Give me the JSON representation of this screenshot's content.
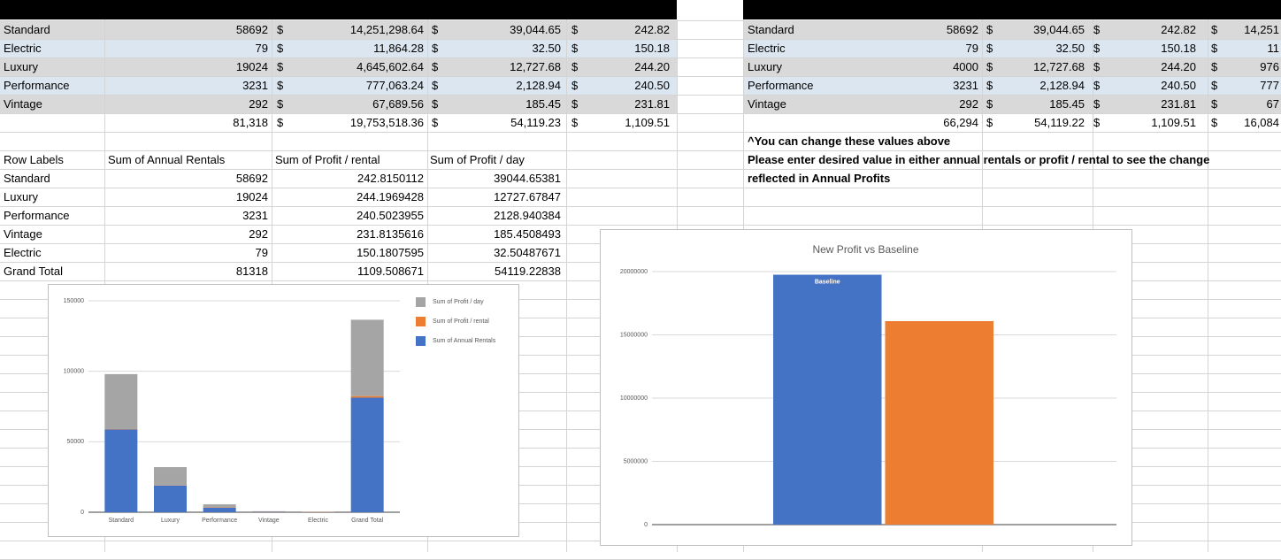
{
  "left_table": {
    "rows": [
      [
        "Standard",
        "58692",
        "$",
        "14,251,298.64",
        "$",
        "39,044.65",
        "$",
        "242.82"
      ],
      [
        "Electric",
        "79",
        "$",
        "11,864.28",
        "$",
        "32.50",
        "$",
        "150.18"
      ],
      [
        "Luxury",
        "19024",
        "$",
        "4,645,602.64",
        "$",
        "12,727.68",
        "$",
        "244.20"
      ],
      [
        "Performance",
        "3231",
        "$",
        "777,063.24",
        "$",
        "2,128.94",
        "$",
        "240.50"
      ],
      [
        "Vintage",
        "292",
        "$",
        "67,689.56",
        "$",
        "185.45",
        "$",
        "231.81"
      ]
    ],
    "totals": [
      "81,318",
      "$",
      "19,753,518.36",
      "$",
      "54,119.23",
      "$",
      "1,109.51"
    ]
  },
  "right_table": {
    "rows": [
      [
        "Standard",
        "58692",
        "$",
        "39,044.65",
        "$",
        "242.82",
        "$",
        "14,251"
      ],
      [
        "Electric",
        "79",
        "$",
        "32.50",
        "$",
        "150.18",
        "$",
        "11"
      ],
      [
        "Luxury",
        "4000",
        "$",
        "12,727.68",
        "$",
        "244.20",
        "$",
        "976"
      ],
      [
        "Performance",
        "3231",
        "$",
        "2,128.94",
        "$",
        "240.50",
        "$",
        "777"
      ],
      [
        "Vintage",
        "292",
        "$",
        "185.45",
        "$",
        "231.81",
        "$",
        "67"
      ]
    ],
    "totals": [
      "66,294",
      "$",
      "54,119.22",
      "$",
      "1,109.51",
      "$",
      "16,084"
    ]
  },
  "notes": [
    "^You can change these values above",
    "Please enter desired value in either annual rentals or profit / rental to see the change",
    "reflected in Annual Profits"
  ],
  "pivot": {
    "headers": [
      "Row Labels",
      "Sum of Annual Rentals",
      "Sum of Profit / rental",
      "Sum of Profit / day"
    ],
    "rows": [
      [
        "Standard",
        "58692",
        "242.8150112",
        "39044.65381"
      ],
      [
        "Luxury",
        "19024",
        "244.1969428",
        "12727.67847"
      ],
      [
        "Performance",
        "3231",
        "240.5023955",
        "2128.940384"
      ],
      [
        "Vintage",
        "292",
        "231.8135616",
        "185.4508493"
      ],
      [
        "Electric",
        "79",
        "150.1807595",
        "32.50487671"
      ],
      [
        "Grand Total",
        "81318",
        "1109.508671",
        "54119.22838"
      ]
    ]
  },
  "chart_data": [
    {
      "type": "stacked_bar",
      "categories": [
        "Standard",
        "Luxury",
        "Performance",
        "Vintage",
        "Electric",
        "Grand Total"
      ],
      "series": [
        {
          "name": "Sum of Annual Rentals",
          "color": "#4472c4",
          "values": [
            58692,
            19024,
            3231,
            292,
            79,
            81318
          ]
        },
        {
          "name": "Sum of Profit / rental",
          "color": "#ed7d31",
          "values": [
            242.8150112,
            244.1969428,
            240.5023955,
            231.8135616,
            150.1807595,
            1109.508671
          ]
        },
        {
          "name": "Sum of Profit / day",
          "color": "#a5a5a5",
          "values": [
            39044.65381,
            12727.67847,
            2128.940384,
            185.4508493,
            32.50487671,
            54119.22838
          ]
        }
      ],
      "ylim": [
        0,
        150000
      ],
      "yticks": [
        0,
        50000,
        100000,
        150000
      ],
      "grid": true,
      "legend": "right"
    },
    {
      "type": "bar",
      "title": "New Profit vs Baseline",
      "series": [
        {
          "name": "Baseline",
          "color": "#4472c4",
          "values": [
            19753518.36
          ]
        },
        {
          "color": "#ed7d31",
          "values": [
            16084000
          ]
        }
      ],
      "ylim": [
        0,
        20000000
      ],
      "yticks": [
        0,
        5000000,
        10000000,
        15000000,
        20000000
      ],
      "grid": true
    }
  ]
}
